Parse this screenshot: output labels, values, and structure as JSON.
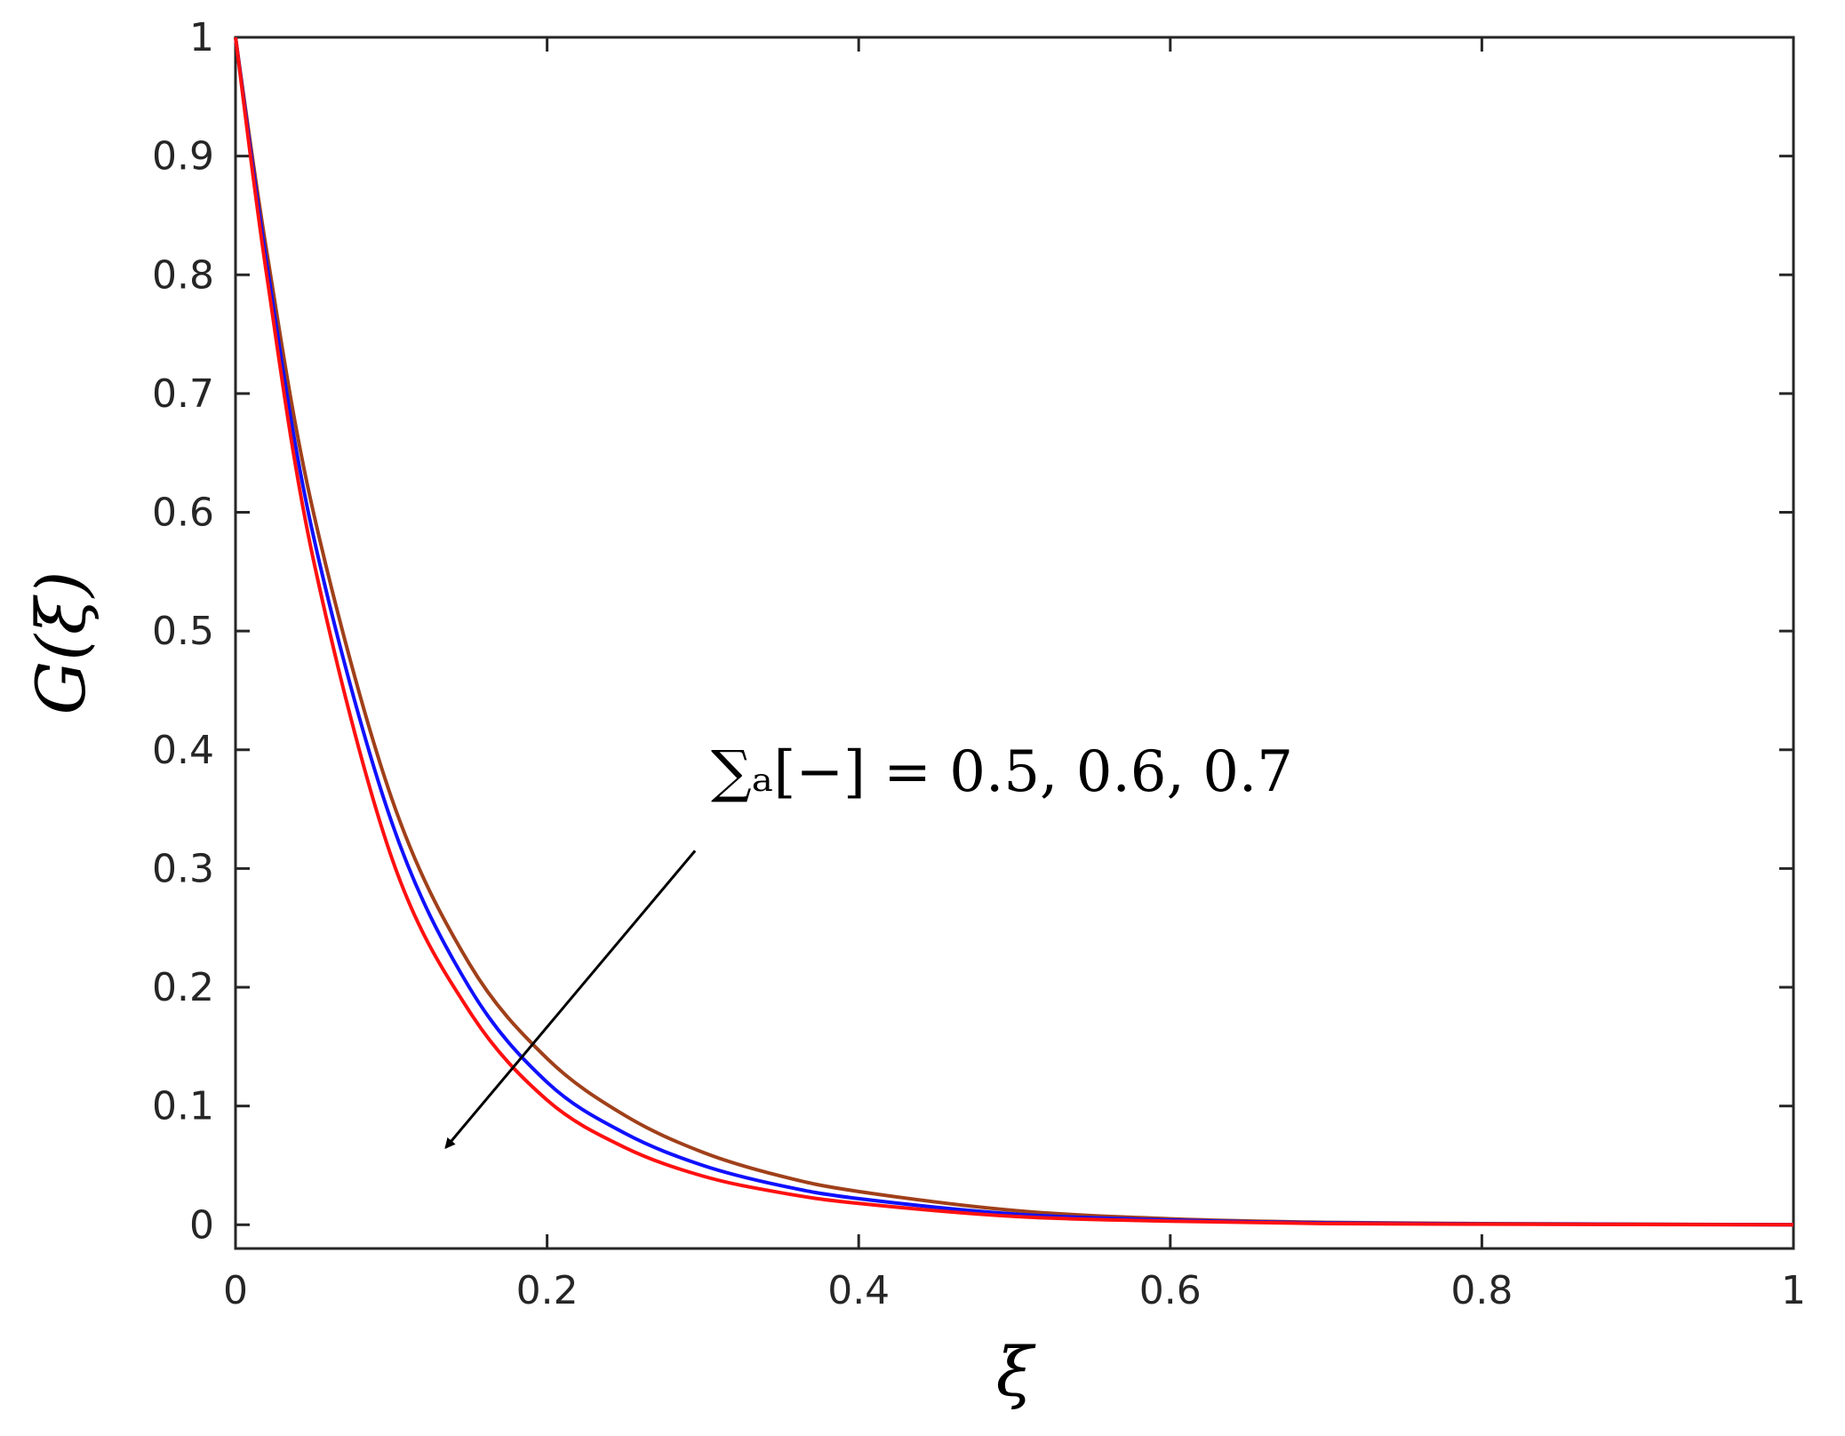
{
  "chart_data": {
    "type": "line",
    "title": "",
    "xlabel": "ξ",
    "ylabel": "G(ξ)",
    "xlim": [
      0,
      1
    ],
    "ylim": [
      -0.02,
      1
    ],
    "xticks": [
      0,
      0.2,
      0.4,
      0.6,
      0.8,
      1
    ],
    "xtick_labels": [
      "0",
      "0.2",
      "0.4",
      "0.6",
      "0.8",
      "1"
    ],
    "yticks": [
      0,
      0.1,
      0.2,
      0.3,
      0.4,
      0.5,
      0.6,
      0.7,
      0.8,
      0.9,
      1
    ],
    "ytick_labels": [
      "0",
      "0.1",
      "0.2",
      "0.3",
      "0.4",
      "0.5",
      "0.6",
      "0.7",
      "0.8",
      "0.9",
      "1"
    ],
    "grid": false,
    "series": [
      {
        "color": "#a0401a",
        "x": [
          0,
          0.02,
          0.05,
          0.1,
          0.15,
          0.2,
          0.25,
          0.3,
          0.35,
          0.4,
          0.5,
          0.6,
          0.7,
          0.8,
          0.9,
          1.0
        ],
        "values": [
          1.0,
          0.82,
          0.6,
          0.36,
          0.22,
          0.14,
          0.092,
          0.061,
          0.041,
          0.028,
          0.012,
          0.005,
          0.002,
          0.001,
          0.0005,
          0.0
        ]
      },
      {
        "color": "#1010ff",
        "x": [
          0,
          0.02,
          0.05,
          0.1,
          0.15,
          0.2,
          0.25,
          0.3,
          0.35,
          0.4,
          0.5,
          0.6,
          0.7,
          0.8,
          0.9,
          1.0
        ],
        "values": [
          1.0,
          0.81,
          0.58,
          0.34,
          0.2,
          0.12,
          0.077,
          0.05,
          0.033,
          0.022,
          0.009,
          0.004,
          0.0015,
          0.0007,
          0.0003,
          0.0
        ]
      },
      {
        "color": "#ff1010",
        "x": [
          0,
          0.02,
          0.05,
          0.1,
          0.15,
          0.2,
          0.25,
          0.3,
          0.35,
          0.4,
          0.5,
          0.6,
          0.7,
          0.8,
          0.9,
          1.0
        ],
        "values": [
          1.0,
          0.8,
          0.56,
          0.31,
          0.18,
          0.105,
          0.065,
          0.041,
          0.027,
          0.018,
          0.007,
          0.003,
          0.001,
          0.0005,
          0.0002,
          0.0
        ]
      }
    ],
    "annotation": {
      "text": "∑ₐ[−] = 0.5, 0.6, 0.7",
      "arrow_from": [
        0.295,
        0.315
      ],
      "arrow_to": [
        0.135,
        0.065
      ]
    }
  }
}
